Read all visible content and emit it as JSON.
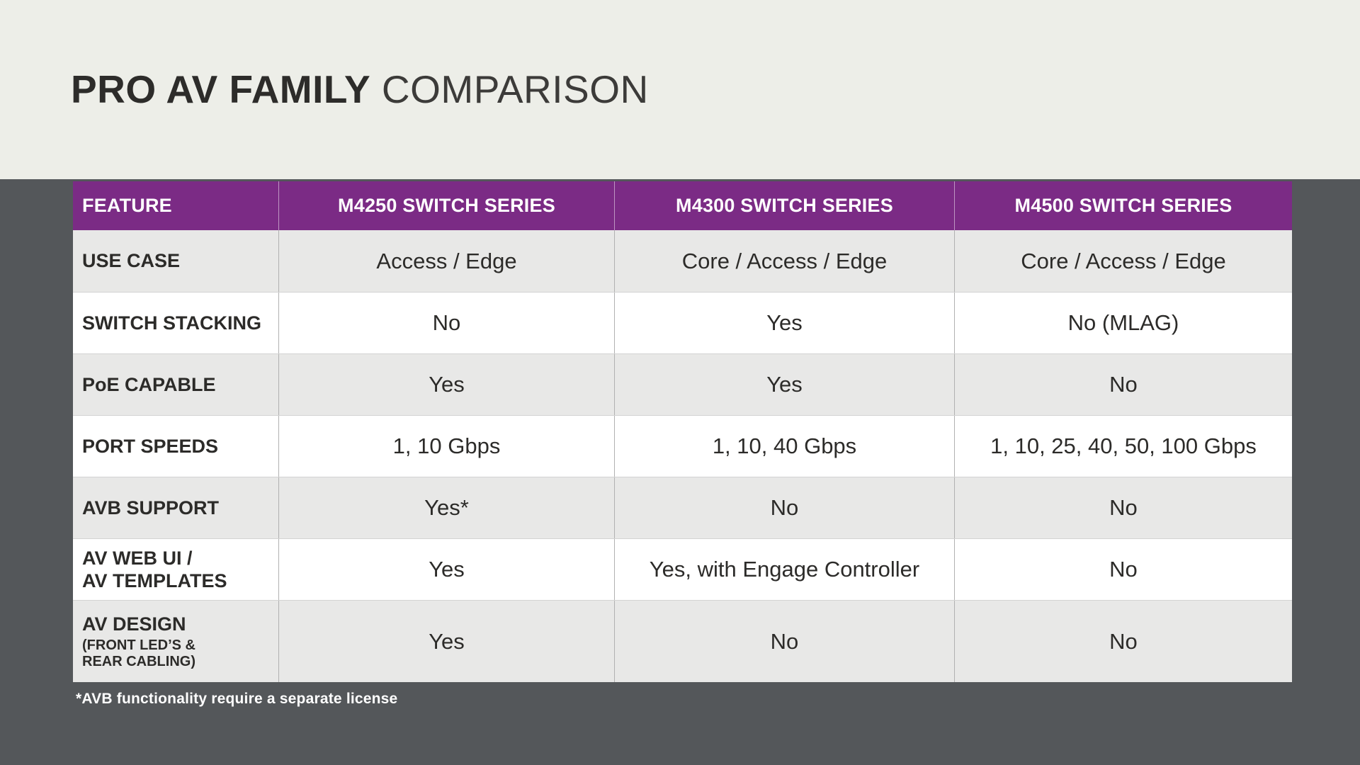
{
  "colors": {
    "header_purple": "#7b2b85",
    "band_top_cream": "#edeee8",
    "band_bottom_gray": "#54575a",
    "row_alt_gray": "#e8e8e7",
    "row_white": "#ffffff",
    "text_dark": "#2c2b29",
    "header_text": "#ffffff",
    "column_divider": "#b1b1b1"
  },
  "chart_data": {
    "type": "table",
    "title": "PRO AV FAMILY COMPARISON",
    "title_bold": "PRO AV FAMILY",
    "title_light": "COMPARISON",
    "columns": [
      "FEATURE",
      "M4250 SWITCH SERIES",
      "M4300 SWITCH SERIES",
      "M4500 SWITCH SERIES"
    ],
    "rows": [
      {
        "feature": "USE CASE",
        "values": [
          "Access / Edge",
          "Core / Access / Edge",
          "Core / Access / Edge"
        ]
      },
      {
        "feature": "SWITCH STACKING",
        "values": [
          "No",
          "Yes",
          "No (MLAG)"
        ]
      },
      {
        "feature": "PoE CAPABLE",
        "values": [
          "Yes",
          "Yes",
          "No"
        ]
      },
      {
        "feature": "PORT SPEEDS",
        "values": [
          "1, 10 Gbps",
          "1, 10, 40 Gbps",
          "1, 10, 25, 40, 50, 100 Gbps"
        ]
      },
      {
        "feature": "AVB SUPPORT",
        "values": [
          "Yes*",
          "No",
          "No"
        ]
      },
      {
        "feature": "AV WEB UI /\nAV TEMPLATES",
        "values": [
          "Yes",
          "Yes, with Engage Controller",
          "No"
        ]
      },
      {
        "feature": "AV DESIGN",
        "feature_sub": "(FRONT LED’S &\nREAR CABLING)",
        "values": [
          "Yes",
          "No",
          "No"
        ]
      }
    ],
    "footnote": "*AVB functionality require a separate license",
    "layout": {
      "legend": "none",
      "grid": "row-striped",
      "header_position": "top"
    }
  }
}
